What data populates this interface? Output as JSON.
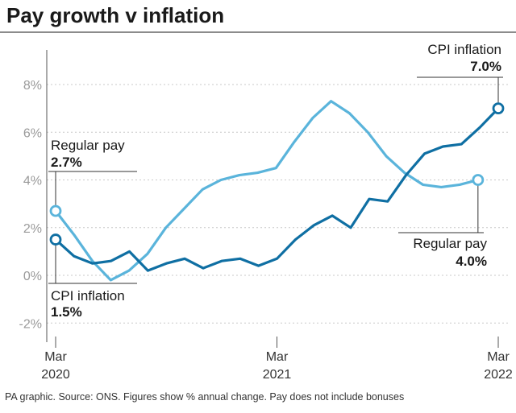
{
  "title": "Pay growth v inflation",
  "source": "PA graphic. Source: ONS. Figures show % annual change. Pay does not include bonuses",
  "colors": {
    "cpi": "#0f6fa3",
    "pay": "#5ab4db",
    "grid": "#c8c8c8",
    "axis": "#555555"
  },
  "chart_data": {
    "type": "line",
    "title": "Pay growth v inflation",
    "ylim": [
      -2.5,
      9.5
    ],
    "yticks": [
      -2,
      0,
      2,
      4,
      6,
      8
    ],
    "ytick_labels": [
      "-2%",
      "0%",
      "2%",
      "4%",
      "6%",
      "8%"
    ],
    "xticks": [
      {
        "index": 0,
        "month": "Mar",
        "year": "2020"
      },
      {
        "index": 12,
        "month": "Mar",
        "year": "2021"
      },
      {
        "index": 24,
        "month": "Mar",
        "year": "2022"
      }
    ],
    "series": [
      {
        "name": "Regular pay",
        "key": "pay",
        "values": [
          2.7,
          1.7,
          0.6,
          -0.2,
          0.2,
          0.9,
          2.0,
          2.8,
          3.6,
          4.0,
          4.2,
          4.3,
          4.5,
          5.6,
          6.6,
          7.3,
          6.8,
          6.0,
          5.0,
          4.3,
          3.8,
          3.7,
          3.8,
          4.0
        ]
      },
      {
        "name": "CPI inflation",
        "key": "cpi",
        "values": [
          1.5,
          0.8,
          0.5,
          0.6,
          1.0,
          0.2,
          0.5,
          0.7,
          0.3,
          0.6,
          0.7,
          0.4,
          0.7,
          1.5,
          2.1,
          2.5,
          2.0,
          3.2,
          3.1,
          4.2,
          5.1,
          5.4,
          5.5,
          6.2,
          7.0
        ]
      }
    ]
  },
  "annotations": {
    "pay_start": {
      "label": "Regular pay",
      "value": "2.7%"
    },
    "cpi_start": {
      "label": "CPI inflation",
      "value": "1.5%"
    },
    "cpi_end": {
      "label": "CPI inflation",
      "value": "7.0%"
    },
    "pay_end": {
      "label": "Regular pay",
      "value": "4.0%"
    }
  }
}
